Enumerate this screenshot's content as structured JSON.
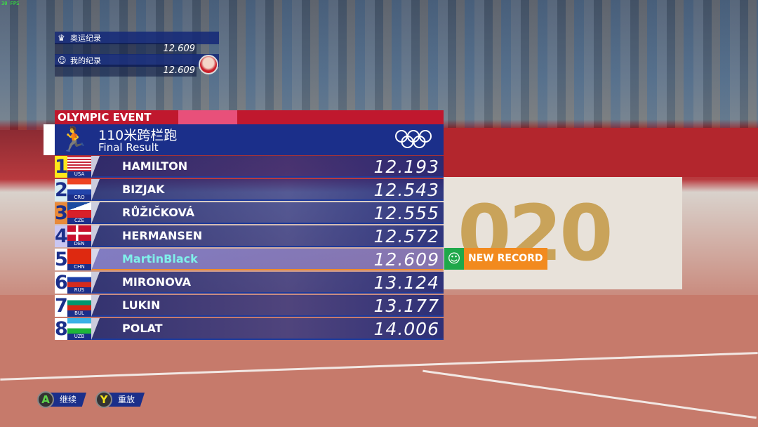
{
  "fps": "30 FPS",
  "records": {
    "olympic_label": "奥运纪录",
    "olympic_value": "12.609",
    "personal_label": "我的纪录",
    "personal_value": "12.609"
  },
  "event": {
    "header": "OLYMPIC EVENT",
    "title": "110米跨栏跑",
    "subtitle": "Final Result"
  },
  "results": [
    {
      "rank": "1",
      "country": "USA",
      "name": "HAMILTON",
      "time": "12.193",
      "rank_color": "#ffe81a"
    },
    {
      "rank": "2",
      "country": "CRO",
      "name": "BIZJAK",
      "time": "12.543",
      "rank_color": "#d8eef2"
    },
    {
      "rank": "3",
      "country": "CZE",
      "name": "RŮŽIČKOVÁ",
      "time": "12.555",
      "rank_color": "#e88a3a"
    },
    {
      "rank": "4",
      "country": "DEN",
      "name": "HERMANSEN",
      "time": "12.572",
      "rank_color": "#c9c6f2"
    },
    {
      "rank": "5",
      "country": "CHN",
      "name": "MartinBlack",
      "time": "12.609",
      "rank_color": "#ffffff"
    },
    {
      "rank": "6",
      "country": "RUS",
      "name": "MIRONOVA",
      "time": "13.124",
      "rank_color": "#ffffff"
    },
    {
      "rank": "7",
      "country": "BUL",
      "name": "LUKIN",
      "time": "13.177",
      "rank_color": "#ffffff"
    },
    {
      "rank": "8",
      "country": "UZB",
      "name": "POLAT",
      "time": "14.006",
      "rank_color": "#ffffff"
    }
  ],
  "new_record": {
    "label": "NEW RECORD",
    "icon": "smiley-icon"
  },
  "controls": [
    {
      "key": "A",
      "label": "继续",
      "color": "#5fd04a"
    },
    {
      "key": "Y",
      "label": "重放",
      "color": "#f2e21a"
    }
  ],
  "background_text": "020"
}
